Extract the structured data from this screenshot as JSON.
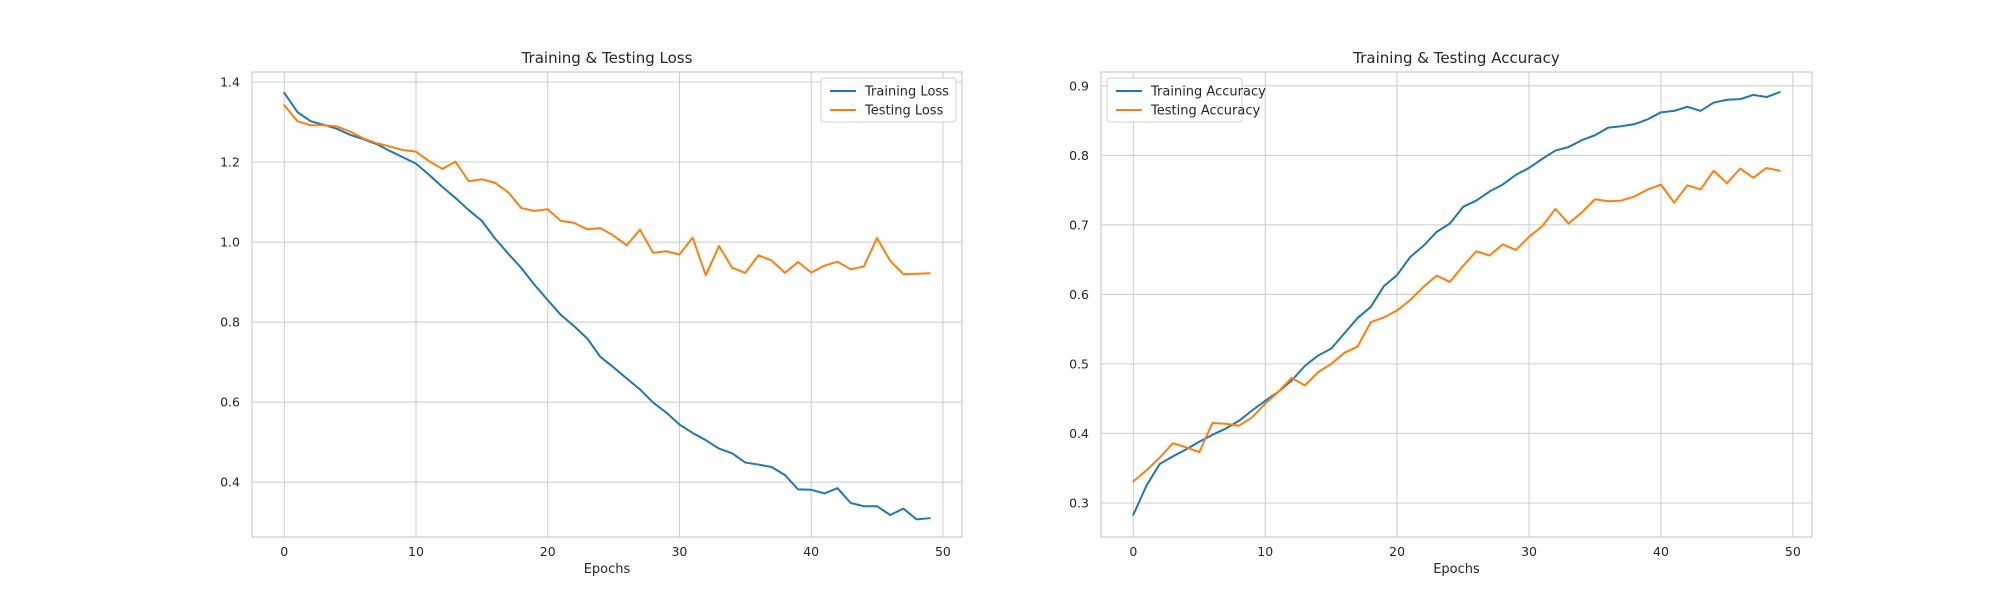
{
  "colors": {
    "training": "#1f77b4",
    "testing": "#ff7f0e"
  },
  "chart_data": [
    {
      "type": "line",
      "title": "Training & Testing Loss",
      "xlabel": "Epochs",
      "ylabel": "",
      "xlim": [
        -2.45,
        51.45
      ],
      "ylim": [
        0.263,
        1.425
      ],
      "xticks": [
        0,
        10,
        20,
        30,
        40,
        50
      ],
      "yticks": [
        0.4,
        0.6,
        0.8,
        1.0,
        1.2,
        1.4
      ],
      "ytick_labels": [
        "0.4",
        "0.6",
        "0.8",
        "1.0",
        "1.2",
        "1.4"
      ],
      "grid": true,
      "legend": "top-right",
      "x": [
        0,
        1,
        2,
        3,
        4,
        5,
        6,
        7,
        8,
        9,
        10,
        11,
        12,
        13,
        14,
        15,
        16,
        17,
        18,
        19,
        20,
        21,
        22,
        23,
        24,
        25,
        26,
        27,
        28,
        29,
        30,
        31,
        32,
        33,
        34,
        35,
        36,
        37,
        38,
        39,
        40,
        41,
        42,
        43,
        44,
        45,
        46,
        47,
        48,
        49
      ],
      "series": [
        {
          "name": "Training Loss",
          "color": "#1f77b4",
          "values": [
            1.373,
            1.325,
            1.302,
            1.293,
            1.283,
            1.268,
            1.257,
            1.245,
            1.228,
            1.212,
            1.196,
            1.168,
            1.138,
            1.11,
            1.08,
            1.053,
            1.009,
            0.971,
            0.935,
            0.893,
            0.855,
            0.818,
            0.79,
            0.759,
            0.713,
            0.687,
            0.659,
            0.632,
            0.599,
            0.574,
            0.544,
            0.523,
            0.505,
            0.484,
            0.472,
            0.449,
            0.444,
            0.438,
            0.418,
            0.382,
            0.381,
            0.372,
            0.385,
            0.348,
            0.34,
            0.34,
            0.318,
            0.334,
            0.307,
            0.31
          ]
        },
        {
          "name": "Testing Loss",
          "color": "#ff7f0e",
          "values": [
            1.342,
            1.302,
            1.292,
            1.292,
            1.289,
            1.276,
            1.259,
            1.247,
            1.239,
            1.23,
            1.226,
            1.202,
            1.183,
            1.201,
            1.152,
            1.157,
            1.148,
            1.124,
            1.085,
            1.078,
            1.082,
            1.053,
            1.048,
            1.032,
            1.035,
            1.016,
            0.992,
            1.031,
            0.973,
            0.977,
            0.969,
            1.011,
            0.917,
            0.99,
            0.936,
            0.923,
            0.967,
            0.954,
            0.923,
            0.95,
            0.924,
            0.941,
            0.951,
            0.932,
            0.939,
            1.01,
            0.953,
            0.92,
            0.921,
            0.922
          ]
        }
      ]
    },
    {
      "type": "line",
      "title": "Training & Testing Accuracy",
      "xlabel": "Epochs",
      "ylabel": "",
      "xlim": [
        -2.45,
        51.45
      ],
      "ylim": [
        0.251,
        0.92
      ],
      "xticks": [
        0,
        10,
        20,
        30,
        40,
        50
      ],
      "yticks": [
        0.3,
        0.4,
        0.5,
        0.6,
        0.7,
        0.8,
        0.9
      ],
      "ytick_labels": [
        "0.3",
        "0.4",
        "0.5",
        "0.6",
        "0.7",
        "0.8",
        "0.9"
      ],
      "grid": true,
      "legend": "top-left",
      "x": [
        0,
        1,
        2,
        3,
        4,
        5,
        6,
        7,
        8,
        9,
        10,
        11,
        12,
        13,
        14,
        15,
        16,
        17,
        18,
        19,
        20,
        21,
        22,
        23,
        24,
        25,
        26,
        27,
        28,
        29,
        30,
        31,
        32,
        33,
        34,
        35,
        36,
        37,
        38,
        39,
        40,
        41,
        42,
        43,
        44,
        45,
        46,
        47,
        48,
        49
      ],
      "series": [
        {
          "name": "Training Accuracy",
          "color": "#1f77b4",
          "values": [
            0.283,
            0.325,
            0.356,
            0.367,
            0.377,
            0.388,
            0.398,
            0.407,
            0.418,
            0.433,
            0.447,
            0.46,
            0.476,
            0.497,
            0.512,
            0.522,
            0.544,
            0.566,
            0.582,
            0.612,
            0.628,
            0.654,
            0.67,
            0.69,
            0.702,
            0.726,
            0.735,
            0.748,
            0.758,
            0.772,
            0.782,
            0.795,
            0.807,
            0.812,
            0.822,
            0.829,
            0.84,
            0.842,
            0.845,
            0.852,
            0.862,
            0.864,
            0.87,
            0.864,
            0.876,
            0.88,
            0.881,
            0.887,
            0.884,
            0.891
          ]
        },
        {
          "name": "Testing Accuracy",
          "color": "#ff7f0e",
          "values": [
            0.331,
            0.347,
            0.365,
            0.386,
            0.38,
            0.373,
            0.415,
            0.414,
            0.411,
            0.423,
            0.443,
            0.46,
            0.48,
            0.469,
            0.488,
            0.5,
            0.516,
            0.525,
            0.56,
            0.567,
            0.577,
            0.592,
            0.611,
            0.627,
            0.618,
            0.641,
            0.662,
            0.656,
            0.672,
            0.664,
            0.683,
            0.698,
            0.723,
            0.702,
            0.718,
            0.737,
            0.734,
            0.735,
            0.741,
            0.751,
            0.758,
            0.732,
            0.757,
            0.751,
            0.778,
            0.76,
            0.781,
            0.768,
            0.782,
            0.778
          ]
        }
      ]
    }
  ]
}
